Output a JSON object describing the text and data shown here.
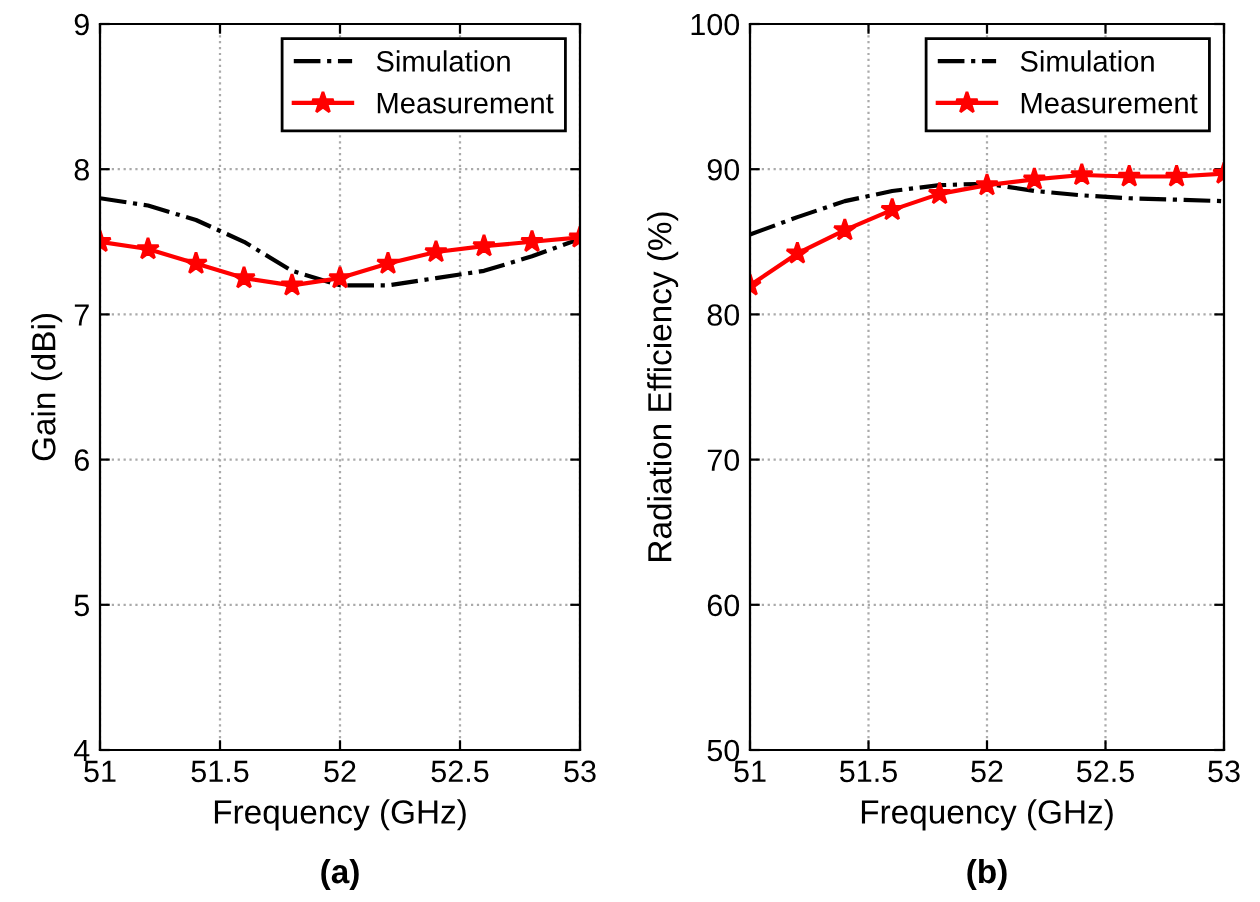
{
  "chart_data": [
    {
      "type": "line",
      "xlabel": "Frequency (GHz)",
      "ylabel": "Gain (dBi)",
      "annotations": [
        "(a)"
      ],
      "x": [
        51,
        51.2,
        51.4,
        51.6,
        51.8,
        52,
        52.2,
        52.4,
        52.6,
        52.8,
        53
      ],
      "series": [
        {
          "name": "Simulation",
          "color": "#000000",
          "line_style": "dashdot",
          "marker": "none",
          "values": [
            7.8,
            7.75,
            7.65,
            7.5,
            7.3,
            7.2,
            7.2,
            7.25,
            7.3,
            7.4,
            7.52
          ]
        },
        {
          "name": "Measurement",
          "color": "#ff0000",
          "line_style": "solid",
          "marker": "star",
          "values": [
            7.5,
            7.45,
            7.35,
            7.25,
            7.2,
            7.25,
            7.35,
            7.43,
            7.47,
            7.5,
            7.53
          ]
        }
      ],
      "xlim": [
        51,
        53
      ],
      "ylim": [
        4,
        9
      ],
      "xticks": [
        51,
        51.5,
        52,
        52.5,
        53
      ],
      "yticks": [
        4,
        5,
        6,
        7,
        8,
        9
      ],
      "grid": true,
      "legend": "top right"
    },
    {
      "type": "line",
      "xlabel": "Frequency (GHz)",
      "ylabel": "Radiation Efficiency (%)",
      "annotations": [
        "(b)"
      ],
      "x": [
        51,
        51.2,
        51.4,
        51.6,
        51.8,
        52,
        52.2,
        52.4,
        52.6,
        52.8,
        53
      ],
      "series": [
        {
          "name": "Simulation",
          "color": "#000000",
          "line_style": "dashdot",
          "marker": "none",
          "values": [
            85.5,
            86.7,
            87.8,
            88.5,
            88.9,
            89,
            88.5,
            88.2,
            88,
            87.9,
            87.8
          ]
        },
        {
          "name": "Measurement",
          "color": "#ff0000",
          "line_style": "solid",
          "marker": "star",
          "values": [
            82,
            84.2,
            85.8,
            87.2,
            88.3,
            88.9,
            89.3,
            89.6,
            89.5,
            89.5,
            89.7
          ]
        }
      ],
      "xlim": [
        51,
        53
      ],
      "ylim": [
        50,
        100
      ],
      "xticks": [
        51,
        51.5,
        52,
        52.5,
        53
      ],
      "yticks": [
        50,
        60,
        70,
        80,
        90,
        100
      ],
      "grid": true,
      "legend": "top right"
    }
  ]
}
